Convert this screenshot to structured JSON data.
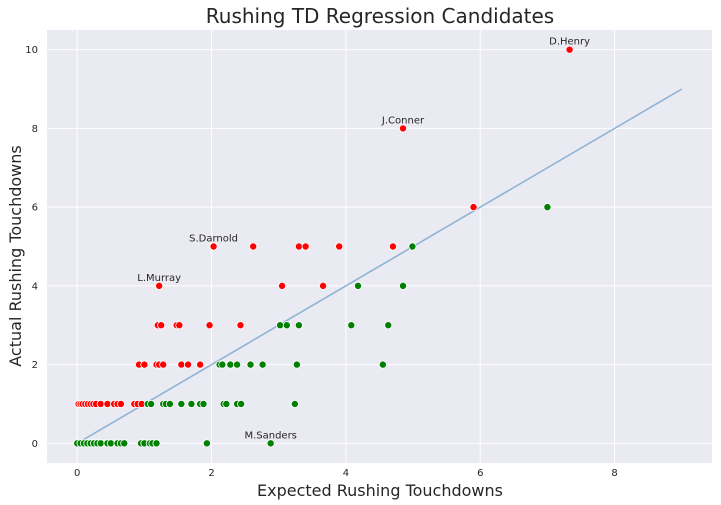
{
  "chart_data": {
    "type": "scatter",
    "title": "Rushing TD Regression Candidates",
    "xlabel": "Expected Rushing Touchdowns",
    "ylabel": "Actual Rushing Touchdowns",
    "xlim": [
      -0.45,
      9.45
    ],
    "ylim": [
      -0.5,
      10.5
    ],
    "xticks": [
      0,
      2,
      4,
      6,
      8
    ],
    "yticks": [
      0,
      2,
      4,
      6,
      8,
      10
    ],
    "grid": true,
    "colors": {
      "background": "#eaeaf2",
      "grid": "#ffffff",
      "over": "#ff0000",
      "under": "#008000",
      "line": "#8fb4d4"
    },
    "reference_line": {
      "x": [
        0,
        9
      ],
      "y": [
        0,
        9
      ]
    },
    "series": [
      {
        "color_key": "over",
        "points": [
          [
            0.02,
            1
          ],
          [
            0.05,
            1
          ],
          [
            0.08,
            1
          ],
          [
            0.12,
            1
          ],
          [
            0.16,
            1
          ],
          [
            0.2,
            1
          ],
          [
            0.24,
            1
          ],
          [
            0.28,
            1
          ],
          [
            0.35,
            1
          ],
          [
            0.45,
            1
          ],
          [
            0.55,
            1
          ],
          [
            0.6,
            1
          ],
          [
            0.65,
            1
          ],
          [
            0.85,
            1
          ],
          [
            0.9,
            1
          ],
          [
            0.96,
            1
          ],
          [
            0.92,
            2
          ],
          [
            1.0,
            2
          ],
          [
            1.18,
            2
          ],
          [
            1.22,
            2
          ],
          [
            1.28,
            2
          ],
          [
            1.55,
            2
          ],
          [
            1.65,
            2
          ],
          [
            1.83,
            2
          ],
          [
            1.2,
            3
          ],
          [
            1.25,
            3
          ],
          [
            1.48,
            3
          ],
          [
            1.52,
            3
          ],
          [
            1.97,
            3
          ],
          [
            2.43,
            3
          ],
          [
            1.22,
            4
          ],
          [
            3.05,
            4
          ],
          [
            3.66,
            4
          ],
          [
            2.03,
            5
          ],
          [
            2.62,
            5
          ],
          [
            3.3,
            5
          ],
          [
            3.4,
            5
          ],
          [
            3.9,
            5
          ],
          [
            4.7,
            5
          ],
          [
            5.9,
            6
          ],
          [
            4.85,
            8
          ],
          [
            7.33,
            10
          ]
        ]
      },
      {
        "color_key": "under",
        "points": [
          [
            0.0,
            0
          ],
          [
            0.05,
            0
          ],
          [
            0.1,
            0
          ],
          [
            0.15,
            0
          ],
          [
            0.2,
            0
          ],
          [
            0.25,
            0
          ],
          [
            0.3,
            0
          ],
          [
            0.35,
            0
          ],
          [
            0.45,
            0
          ],
          [
            0.5,
            0
          ],
          [
            0.6,
            0
          ],
          [
            0.65,
            0
          ],
          [
            0.7,
            0
          ],
          [
            0.95,
            0
          ],
          [
            1.0,
            0
          ],
          [
            1.08,
            0
          ],
          [
            1.12,
            0
          ],
          [
            1.18,
            0
          ],
          [
            1.93,
            0
          ],
          [
            2.88,
            0
          ],
          [
            1.05,
            1
          ],
          [
            1.1,
            1
          ],
          [
            1.28,
            1
          ],
          [
            1.32,
            1
          ],
          [
            1.38,
            1
          ],
          [
            1.55,
            1
          ],
          [
            1.7,
            1
          ],
          [
            1.83,
            1
          ],
          [
            1.88,
            1
          ],
          [
            2.18,
            1
          ],
          [
            2.22,
            1
          ],
          [
            2.38,
            1
          ],
          [
            2.44,
            1
          ],
          [
            3.24,
            1
          ],
          [
            2.12,
            2
          ],
          [
            2.16,
            2
          ],
          [
            2.28,
            2
          ],
          [
            2.38,
            2
          ],
          [
            2.58,
            2
          ],
          [
            2.76,
            2
          ],
          [
            3.27,
            2
          ],
          [
            4.55,
            2
          ],
          [
            3.02,
            3
          ],
          [
            3.12,
            3
          ],
          [
            3.3,
            3
          ],
          [
            4.08,
            3
          ],
          [
            4.63,
            3
          ],
          [
            4.18,
            4
          ],
          [
            4.85,
            4
          ],
          [
            4.99,
            5
          ],
          [
            7.0,
            6
          ]
        ]
      }
    ],
    "annotations": [
      {
        "text": "D.Henry",
        "x": 7.33,
        "y": 10
      },
      {
        "text": "J.Conner",
        "x": 4.85,
        "y": 8
      },
      {
        "text": "S.Darnold",
        "x": 2.03,
        "y": 5
      },
      {
        "text": "L.Murray",
        "x": 1.22,
        "y": 4
      },
      {
        "text": "M.Sanders",
        "x": 2.88,
        "y": 0
      }
    ]
  }
}
